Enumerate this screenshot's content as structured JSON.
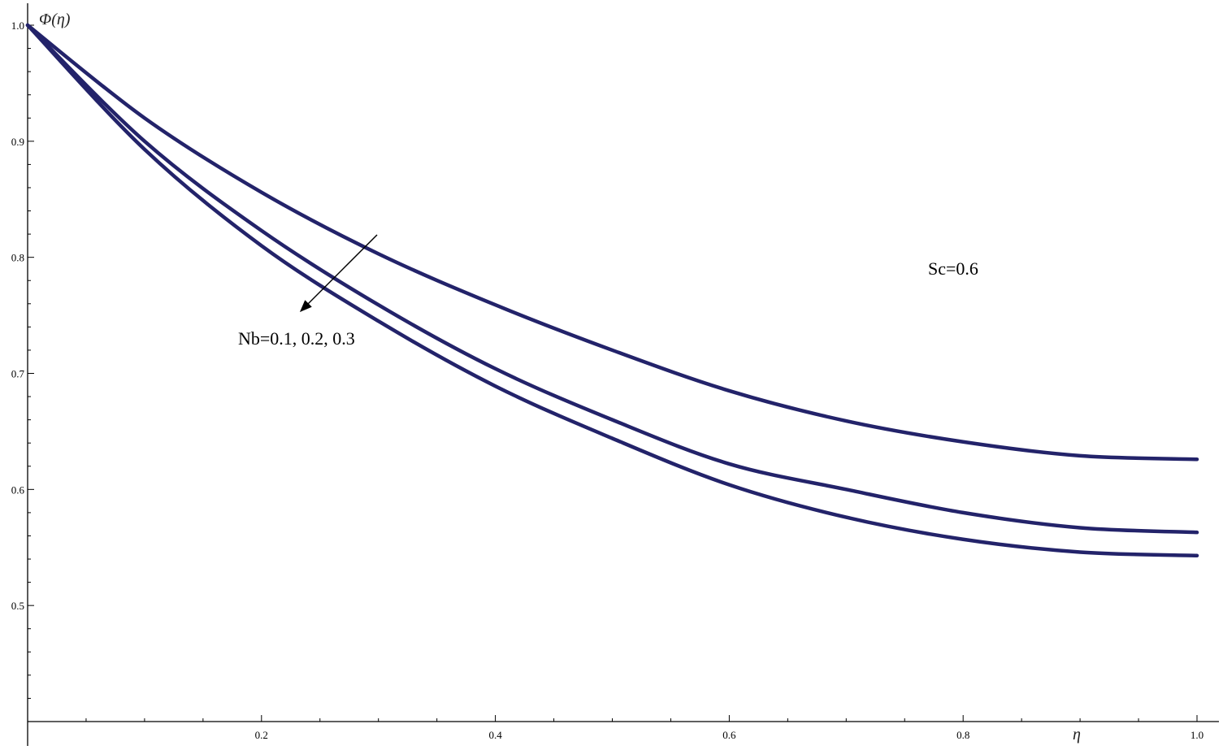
{
  "chart_data": {
    "type": "line",
    "title": "",
    "xlabel": "η",
    "ylabel": "Φ(η)",
    "xlim": [
      0,
      1.0
    ],
    "ylim": [
      0.4,
      1.0
    ],
    "x_ticks": [
      "0.2",
      "0.4",
      "0.6",
      "0.8",
      "1.0"
    ],
    "y_ticks": [
      "0.5",
      "0.6",
      "0.7",
      "0.8",
      "0.9",
      "1.0"
    ],
    "grid": false,
    "series_color": "#23236a",
    "series": [
      {
        "x": [
          0,
          0.1,
          0.2,
          0.3,
          0.4,
          0.5,
          0.6,
          0.7,
          0.8,
          0.9,
          1.0
        ],
        "values": [
          1.0,
          0.92,
          0.856,
          0.803,
          0.759,
          0.72,
          0.685,
          0.659,
          0.641,
          0.629,
          0.626
        ]
      },
      {
        "x": [
          0,
          0.1,
          0.2,
          0.3,
          0.4,
          0.5,
          0.6,
          0.7,
          0.8,
          0.9,
          1.0
        ],
        "values": [
          1.0,
          0.9,
          0.823,
          0.759,
          0.704,
          0.66,
          0.622,
          0.6,
          0.58,
          0.567,
          0.563
        ]
      },
      {
        "x": [
          0,
          0.1,
          0.2,
          0.3,
          0.4,
          0.5,
          0.6,
          0.7,
          0.8,
          0.9,
          1.0
        ],
        "values": [
          1.0,
          0.893,
          0.81,
          0.745,
          0.689,
          0.644,
          0.604,
          0.576,
          0.557,
          0.546,
          0.543
        ]
      }
    ],
    "annotations": {
      "nb_label": "Nb=0.1, 0.2, 0.3",
      "sc_label": "Sc=0.6"
    }
  }
}
